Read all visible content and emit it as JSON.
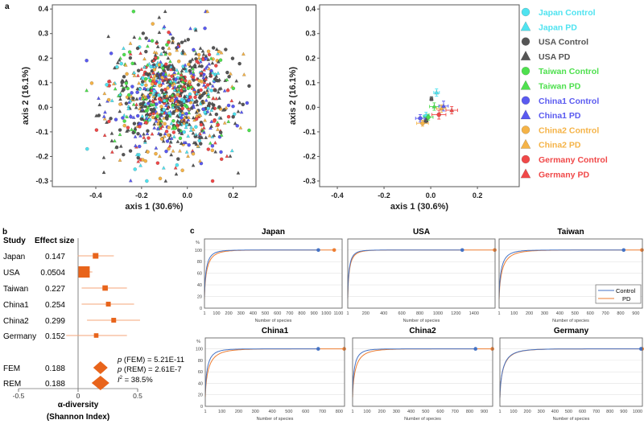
{
  "panel_labels": {
    "a": "a",
    "b": "b",
    "c": "c"
  },
  "colors": {
    "Japan": "#4fe3f0",
    "USA": "#555555",
    "Taiwan": "#4ee04e",
    "China1": "#5a5af0",
    "China2": "#f5b347",
    "Germany": "#f04848",
    "forest": "#e8641b",
    "forest_ci": "#f4a678",
    "control_curve": "#4472c4",
    "pd_curve": "#ed7d31"
  },
  "chart_data": [
    {
      "id": "pcoa_samples",
      "type": "scatter",
      "xlabel": "axis 1 (30.6%)",
      "ylabel": "axis 2 (16.1%)",
      "xlim": [
        -0.59,
        0.3
      ],
      "ylim": [
        -0.323,
        0.417
      ],
      "xticks": [
        "-0.4",
        "-0.2",
        "0.0",
        "0.2"
      ],
      "xtick_values": [
        -0.4,
        -0.2,
        0,
        0.2
      ],
      "yticks": [
        "0.4",
        "0.3",
        "0.2",
        "0.1",
        "0.0",
        "-0.1",
        "-0.2",
        "-0.3"
      ],
      "ytick_values": [
        0.4,
        0.3,
        0.2,
        0.1,
        0,
        -0.1,
        -0.2,
        -0.3
      ],
      "grid": false
    },
    {
      "id": "pcoa_centroids",
      "type": "scatter",
      "xlabel": "axis 1 (30.6%)",
      "ylabel": "axis 2 (16.1%)",
      "xlim": [
        -0.476,
        0.379
      ],
      "ylim": [
        -0.323,
        0.417
      ],
      "xticks": [
        "-0.4",
        "-0.2",
        "0.0",
        "0.2"
      ],
      "xtick_values": [
        -0.4,
        -0.2,
        0,
        0.2
      ],
      "yticks": [
        "0.4",
        "0.3",
        "0.2",
        "0.1",
        "0.0",
        "-0.1",
        "-0.2",
        "-0.3"
      ],
      "ytick_values": [
        0.4,
        0.3,
        0.2,
        0.1,
        0,
        -0.1,
        -0.2,
        -0.3
      ],
      "grid": false,
      "legend_position": "right",
      "series": [
        {
          "name": "Japan Control",
          "country": "Japan",
          "marker": "circle",
          "x": -0.02,
          "y": -0.035,
          "xerr": 0.012,
          "yerr": 0.015
        },
        {
          "name": "Japan PD",
          "country": "Japan",
          "marker": "triangle",
          "x": 0.025,
          "y": 0.06,
          "xerr": 0.012,
          "yerr": 0.015
        },
        {
          "name": "USA Control",
          "country": "USA",
          "marker": "circle",
          "x": -0.02,
          "y": -0.055,
          "xerr": 0.008,
          "yerr": 0.01
        },
        {
          "name": "USA PD",
          "country": "USA",
          "marker": "triangle",
          "x": 0.003,
          "y": 0.035,
          "xerr": 0.006,
          "yerr": 0.008
        },
        {
          "name": "Taiwan Control",
          "country": "Taiwan",
          "marker": "circle",
          "x": -0.01,
          "y": -0.04,
          "xerr": 0.02,
          "yerr": 0.012
        },
        {
          "name": "Taiwan PD",
          "country": "Taiwan",
          "marker": "triangle",
          "x": 0.015,
          "y": 0.003,
          "xerr": 0.02,
          "yerr": 0.015
        },
        {
          "name": "China1 Control",
          "country": "China1",
          "marker": "circle",
          "x": -0.045,
          "y": -0.045,
          "xerr": 0.02,
          "yerr": 0.015
        },
        {
          "name": "China1 PD",
          "country": "China1",
          "marker": "triangle",
          "x": 0.055,
          "y": 0.005,
          "xerr": 0.02,
          "yerr": 0.02
        },
        {
          "name": "China2 Control",
          "country": "China2",
          "marker": "circle",
          "x": -0.035,
          "y": -0.065,
          "xerr": 0.025,
          "yerr": 0.012
        },
        {
          "name": "China2 PD",
          "country": "China2",
          "marker": "triangle",
          "x": 0.045,
          "y": -0.005,
          "xerr": 0.02,
          "yerr": 0.015
        },
        {
          "name": "Germany Control",
          "country": "Germany",
          "marker": "circle",
          "x": 0.035,
          "y": -0.03,
          "xerr": 0.03,
          "yerr": 0.018
        },
        {
          "name": "Germany PD",
          "country": "Germany",
          "marker": "triangle",
          "x": 0.09,
          "y": -0.012,
          "xerr": 0.025,
          "yerr": 0.015
        }
      ]
    },
    {
      "id": "forest",
      "type": "forest",
      "headers": {
        "study": "Study",
        "effect": "Effect size"
      },
      "xlabel_line1": "α-diversity",
      "xlabel_line2": "(Shannon Index)",
      "xlim": [
        -0.5,
        0.5
      ],
      "xticks": [
        "-0.5",
        "0",
        "0.5"
      ],
      "xtick_values": [
        -0.5,
        0,
        0.5
      ],
      "studies": [
        {
          "label": "Japan",
          "effect": "0.147",
          "value": 0.147,
          "ci": [
            -0.003,
            0.3
          ],
          "weight": 1.0
        },
        {
          "label": "USA",
          "effect": "0.0504",
          "value": 0.0504,
          "ci": [
            0.01,
            0.12
          ],
          "weight": 2.0
        },
        {
          "label": "Taiwan",
          "effect": "0.227",
          "value": 0.227,
          "ci": [
            0.03,
            0.41
          ],
          "weight": 0.95
        },
        {
          "label": "China1",
          "effect": "0.254",
          "value": 0.254,
          "ci": [
            0.03,
            0.47
          ],
          "weight": 0.85
        },
        {
          "label": "China2",
          "effect": "0.299",
          "value": 0.299,
          "ci": [
            0.075,
            0.52
          ],
          "weight": 0.85
        },
        {
          "label": "Germany",
          "effect": "0.152",
          "value": 0.152,
          "ci": [
            -0.1,
            0.41
          ],
          "weight": 0.8
        }
      ],
      "summary": [
        {
          "label": "FEM",
          "effect": "0.188",
          "value": 0.188
        },
        {
          "label": "REM",
          "effect": "0.188",
          "value": 0.188
        }
      ],
      "annotations": {
        "p_fem_label": "p",
        "p_fem_text": " (FEM) =  5.21E-11",
        "p_rem_label": "p",
        "p_rem_text": " (REM) = 2.61E-7",
        "i2_label": "I",
        "i2_sup": "2",
        "i2_text": " = 38.5%"
      }
    },
    {
      "id": "rarefaction",
      "type": "line",
      "xlabel": "Number of species",
      "ylabel": "%",
      "yticks": [
        "0",
        "20",
        "40",
        "60",
        "80",
        "100"
      ],
      "ytick_values": [
        0,
        20,
        40,
        60,
        80,
        100
      ],
      "legend": [
        "Control",
        "PD"
      ],
      "legend_position": "bottom-right of Taiwan panel",
      "panels": [
        {
          "title": "Japan",
          "xmax": 1130,
          "control_end": 935,
          "pd_end": 1065,
          "xticks": [
            "1",
            "100",
            "200",
            "300",
            "400",
            "500",
            "600",
            "700",
            "800",
            "900",
            "1000",
            "1100"
          ],
          "xtick_values": [
            1,
            100,
            200,
            300,
            400,
            500,
            600,
            700,
            800,
            900,
            1000,
            1100
          ],
          "show_y": true
        },
        {
          "title": "USA",
          "xmax": 1634,
          "control_end": 1270,
          "pd_end": 1630,
          "xticks": [
            "1",
            "200",
            "400",
            "600",
            "800",
            "1000",
            "1200",
            "1400"
          ],
          "xtick_values": [
            1,
            200,
            400,
            600,
            800,
            1000,
            1200,
            1400
          ],
          "show_y": false
        },
        {
          "title": "Taiwan",
          "xmax": 943,
          "control_end": 820,
          "pd_end": 940,
          "xticks": [
            "1",
            "100",
            "200",
            "300",
            "400",
            "500",
            "600",
            "700",
            "800",
            "900"
          ],
          "xtick_values": [
            1,
            100,
            200,
            300,
            400,
            500,
            600,
            700,
            800,
            900
          ],
          "show_y": false,
          "legend": true
        },
        {
          "title": "China1",
          "xmax": 832,
          "control_end": 675,
          "pd_end": 830,
          "xticks": [
            "1",
            "100",
            "200",
            "300",
            "400",
            "500",
            "600",
            "700",
            "800"
          ],
          "xtick_values": [
            1,
            100,
            200,
            300,
            400,
            500,
            600,
            700,
            800
          ],
          "show_y": true
        },
        {
          "title": "China2",
          "xmax": 957,
          "control_end": 840,
          "pd_end": 955,
          "xticks": [
            "1",
            "100",
            "200",
            "300",
            "400",
            "500",
            "600",
            "700",
            "800",
            "900"
          ],
          "xtick_values": [
            1,
            100,
            200,
            300,
            400,
            500,
            600,
            700,
            800,
            900
          ],
          "show_y": false
        },
        {
          "title": "Germany",
          "xmax": 1035,
          "control_end": 1025,
          "pd_end": 1033,
          "xticks": [
            "1",
            "100",
            "200",
            "300",
            "400",
            "500",
            "600",
            "700",
            "800",
            "900",
            "1000"
          ],
          "xtick_values": [
            1,
            100,
            200,
            300,
            400,
            500,
            600,
            700,
            800,
            900,
            1000
          ],
          "show_y": false
        }
      ]
    }
  ]
}
